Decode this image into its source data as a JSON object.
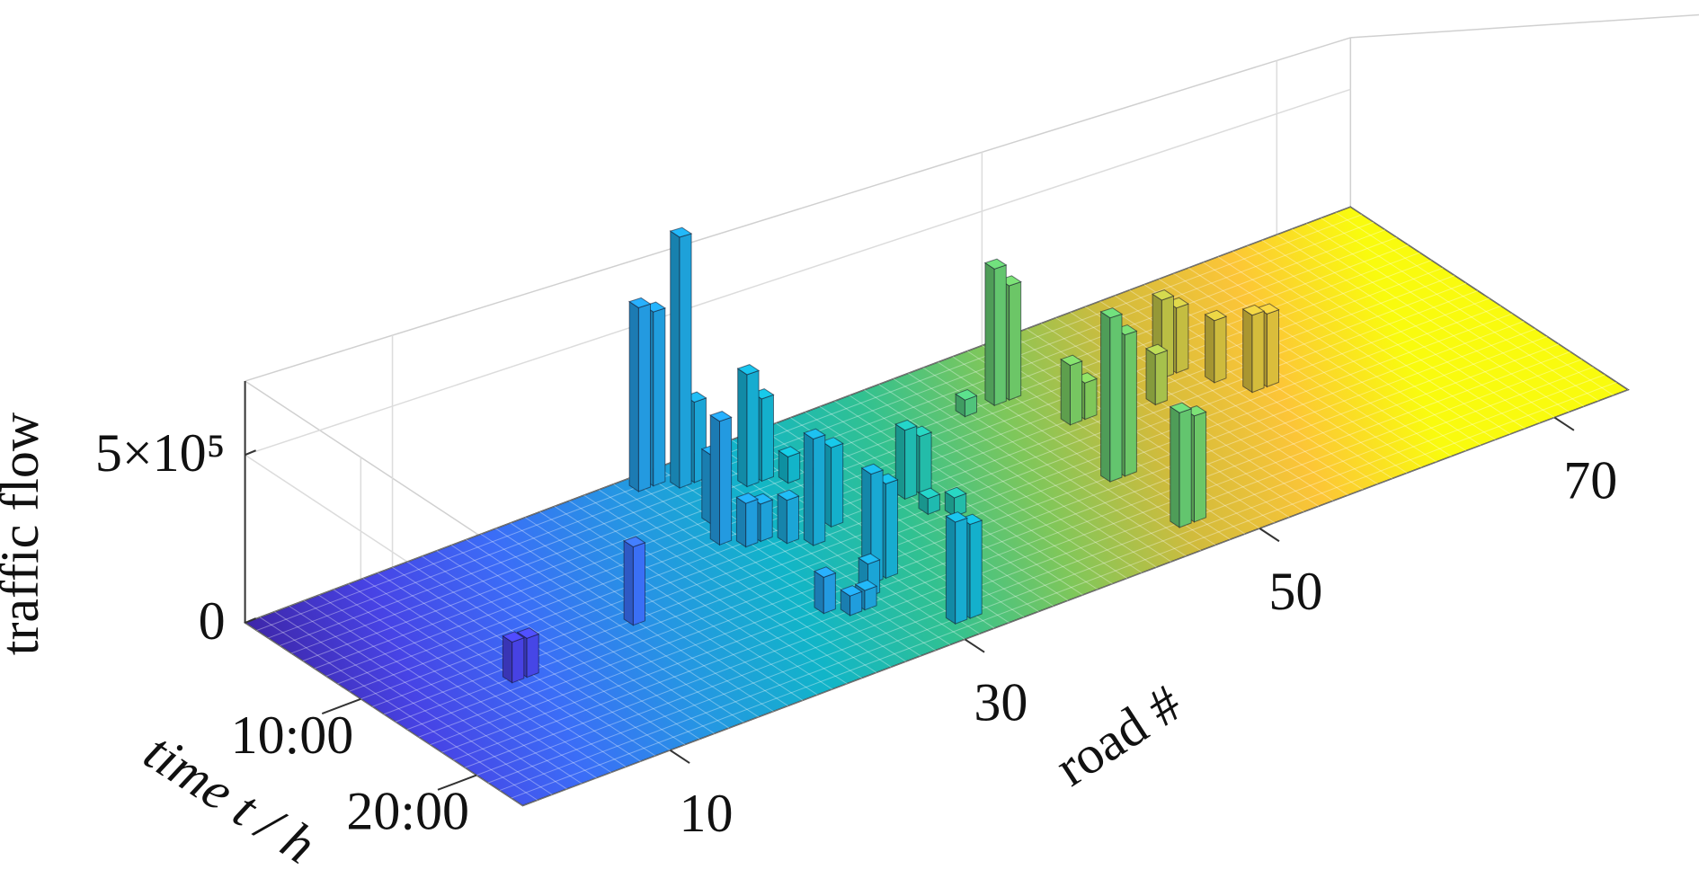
{
  "chart_data": {
    "type": "bar3",
    "zlabel": "traffic flow",
    "ylabel": "time t / h",
    "xlabel": "road #",
    "xlim": [
      0,
      75
    ],
    "ylim": [
      0,
      24
    ],
    "zlim": [
      0,
      720000
    ],
    "xticks": [
      10,
      30,
      50,
      70
    ],
    "yticks": [
      {
        "value": 10,
        "label": "10:00"
      },
      {
        "value": 20,
        "label": "20:00"
      }
    ],
    "zticks": [
      0,
      {
        "value": 500000,
        "label": "5×10⁵"
      }
    ],
    "colormap": [
      "#3e26a8",
      "#4743e5",
      "#3b6df7",
      "#2596e3",
      "#11b5c8",
      "#31c191",
      "#7fc75a",
      "#d1bb3c",
      "#fcc537",
      "#f9fb0e"
    ],
    "x": [
      8,
      9,
      17,
      26,
      27,
      28,
      29,
      27,
      26,
      27,
      31,
      32,
      28,
      33,
      34,
      30,
      32,
      29,
      26,
      29,
      28,
      27,
      30,
      31,
      37,
      38,
      37,
      38,
      31,
      32,
      47,
      48,
      45,
      50,
      49,
      50,
      47,
      48,
      54,
      56,
      57,
      47,
      48,
      58,
      59,
      60
    ],
    "y": [
      13,
      13,
      12,
      1,
      1,
      2,
      2,
      6,
      8,
      9,
      4,
      4,
      9,
      5,
      6,
      11,
      10,
      10,
      17,
      17,
      18,
      18,
      16,
      16,
      10,
      10,
      12,
      13,
      22,
      22,
      5,
      5,
      5,
      8,
      9,
      9,
      15,
      15,
      10,
      8,
      8,
      21,
      21,
      10,
      12,
      12
    ],
    "values": [
      125000,
      120000,
      250000,
      610000,
      580000,
      840000,
      270000,
      230000,
      410000,
      145000,
      380000,
      280000,
      125000,
      90000,
      55000,
      360000,
      270000,
      145000,
      120000,
      110000,
      65000,
      65000,
      370000,
      320000,
      240000,
      200000,
      55000,
      65000,
      345000,
      320000,
      500000,
      420000,
      60000,
      40000,
      220000,
      135000,
      600000,
      520000,
      190000,
      300000,
      250000,
      420000,
      390000,
      240000,
      300000,
      285000
    ]
  }
}
